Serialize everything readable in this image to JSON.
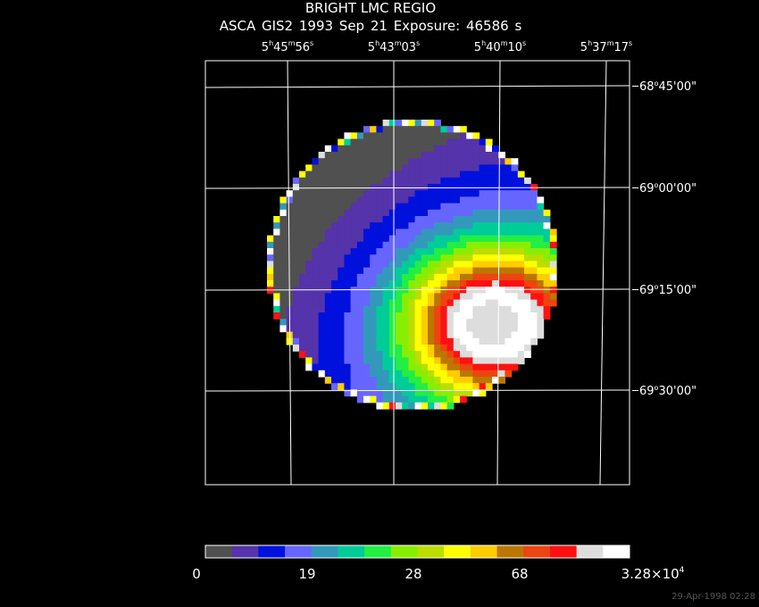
{
  "title": "BRIGHT LMC REGIO",
  "subtitle": "ASCA GIS2    1993 Sep 21    Exposure: 46586 s",
  "ra_labels": [
    {
      "h": "5",
      "m": "45",
      "s": "56"
    },
    {
      "h": "5",
      "m": "43",
      "s": "03"
    },
    {
      "h": "5",
      "m": "40",
      "s": "10"
    },
    {
      "h": "5",
      "m": "37",
      "s": "17"
    }
  ],
  "dec_labels": [
    {
      "d": "68",
      "m": "45",
      "s": "00"
    },
    {
      "d": "69",
      "m": "00",
      "s": "00"
    },
    {
      "d": "69",
      "m": "15",
      "s": "00"
    },
    {
      "d": "69",
      "m": "30",
      "s": "00"
    }
  ],
  "colorbar": {
    "colors": [
      "#505050",
      "#5533aa",
      "#0011dd",
      "#6666ff",
      "#3399bb",
      "#00cc99",
      "#22ee44",
      "#88ee00",
      "#bbdd00",
      "#ffff00",
      "#ffcc00",
      "#bb7700",
      "#ee4411",
      "#ff1111",
      "#dddddd",
      "#ffffff"
    ],
    "labels": [
      "0",
      "19",
      "28",
      "68"
    ],
    "max_label_mantissa": "3.28×10",
    "max_label_exp": "4"
  },
  "timestamp": "29-Apr-1998 02:28"
}
